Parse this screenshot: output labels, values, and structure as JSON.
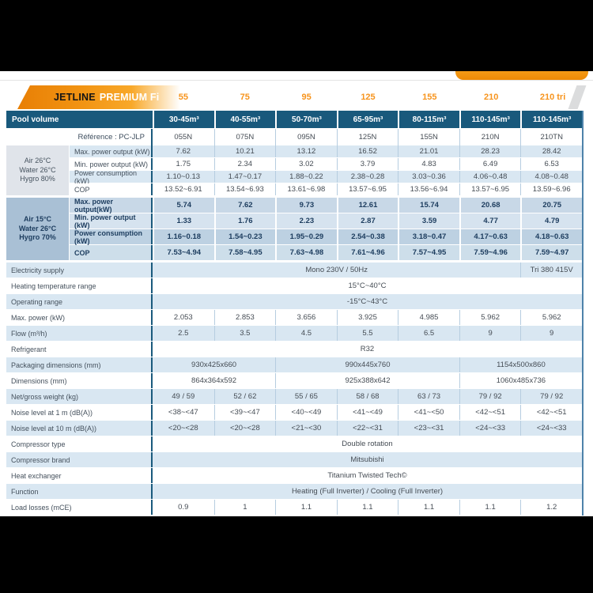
{
  "colors": {
    "accent_orange": "#f7941d",
    "header_blue": "#19597c",
    "row_light_blue": "#d9e7f2",
    "highlight_section_blue": "#a9c0d5"
  },
  "header_band": {
    "brand_black": "JETLINE",
    "brand_white": "PREMIUM Fi",
    "models": [
      "55",
      "75",
      "95",
      "125",
      "155",
      "210",
      "210 tri"
    ]
  },
  "table": {
    "pool_volume_row": {
      "label": "Pool volume",
      "values": [
        "30-45m³",
        "40-55m³",
        "50-70m³",
        "65-95m³",
        "80-115m³",
        "110-145m³",
        "110-145m³"
      ]
    },
    "reference_row": {
      "label": "Référence : PC-JLP",
      "values": [
        "055N",
        "075N",
        "095N",
        "125N",
        "155N",
        "210N",
        "210TN"
      ]
    },
    "condition_blocks": [
      {
        "style": "normal",
        "condition_lines": [
          "Air 26°C",
          "Water 26°C",
          "Hygro 80%"
        ],
        "rows": [
          {
            "label": "Max. power output (kW)",
            "values": [
              "7.62",
              "10.21",
              "13.12",
              "16.52",
              "21.01",
              "28.23",
              "28.42"
            ]
          },
          {
            "label": "Min. power output (kW)",
            "values": [
              "1.75",
              "2.34",
              "3.02",
              "3.79",
              "4.83",
              "6.49",
              "6.53"
            ]
          },
          {
            "label": "Power consumption (kW)",
            "values": [
              "1.10~0.13",
              "1.47~0.17",
              "1.88~0.22",
              "2.38~0.28",
              "3.03~0.36",
              "4.06~0.48",
              "4.08~0.48"
            ]
          },
          {
            "label": "COP",
            "values": [
              "13.52~6.91",
              "13.54~6.93",
              "13.61~6.98",
              "13.57~6.95",
              "13.56~6.94",
              "13.57~6.95",
              "13.59~6.96"
            ]
          }
        ]
      },
      {
        "style": "highlight",
        "condition_lines": [
          "Air 15°C",
          "Water 26°C",
          "Hygro 70%"
        ],
        "rows": [
          {
            "label": "Max. power output(kW)",
            "values": [
              "5.74",
              "7.62",
              "9.73",
              "12.61",
              "15.74",
              "20.68",
              "20.75"
            ]
          },
          {
            "label": "Min. power output (kW)",
            "values": [
              "1.33",
              "1.76",
              "2.23",
              "2.87",
              "3.59",
              "4.77",
              "4.79"
            ]
          },
          {
            "label": "Power consumption (kW)",
            "values": [
              "1.16~0.18",
              "1.54~0.23",
              "1.95~0.29",
              "2.54~0.38",
              "3.18~0.47",
              "4.17~0.63",
              "4.18~0.63"
            ]
          },
          {
            "label": "COP",
            "values": [
              "7.53~4.94",
              "7.58~4.95",
              "7.63~4.98",
              "7.61~4.96",
              "7.57~4.95",
              "7.59~4.96",
              "7.59~4.97"
            ]
          }
        ]
      }
    ],
    "spec_rows": [
      {
        "label": "Electricity supply",
        "cells": [
          {
            "text": "Mono 230V / 50Hz",
            "span": 6
          },
          {
            "text": "Tri 380 415V",
            "span": 1
          }
        ]
      },
      {
        "label": "Heating temperature range",
        "cells": [
          {
            "text": "15°C~40°C",
            "span": 7
          }
        ]
      },
      {
        "label": "Operating range",
        "cells": [
          {
            "text": "-15°C~43°C",
            "span": 7
          }
        ]
      },
      {
        "label": "Max. power (kW)",
        "cells": [
          {
            "text": "2.053"
          },
          {
            "text": "2.853"
          },
          {
            "text": "3.656"
          },
          {
            "text": "3.925"
          },
          {
            "text": "4.985"
          },
          {
            "text": "5.962"
          },
          {
            "text": "5.962"
          }
        ]
      },
      {
        "label": "Flow (m³/h)",
        "cells": [
          {
            "text": "2.5"
          },
          {
            "text": "3.5"
          },
          {
            "text": "4.5"
          },
          {
            "text": "5.5"
          },
          {
            "text": "6.5"
          },
          {
            "text": "9"
          },
          {
            "text": "9"
          }
        ]
      },
      {
        "label": "Refrigerant",
        "cells": [
          {
            "text": "R32",
            "span": 7
          }
        ]
      },
      {
        "label": "Packaging dimensions (mm)",
        "cells": [
          {
            "text": "930x425x660",
            "span": 2
          },
          {
            "text": "990x445x760",
            "span": 3
          },
          {
            "text": "1154x500x860",
            "span": 2
          }
        ]
      },
      {
        "label": "Dimensions (mm)",
        "cells": [
          {
            "text": "864x364x592",
            "span": 2
          },
          {
            "text": "925x388x642",
            "span": 3
          },
          {
            "text": "1060x485x736",
            "span": 2
          }
        ]
      },
      {
        "label": "Net/gross weight (kg)",
        "cells": [
          {
            "text": "49 / 59"
          },
          {
            "text": "52 / 62"
          },
          {
            "text": "55 / 65"
          },
          {
            "text": "58 / 68"
          },
          {
            "text": "63 / 73"
          },
          {
            "text": "79 / 92"
          },
          {
            "text": "79 / 92"
          }
        ]
      },
      {
        "label": "Noise level at 1 m (dB(A))",
        "cells": [
          {
            "text": "<38~<47"
          },
          {
            "text": "<39~<47"
          },
          {
            "text": "<40~<49"
          },
          {
            "text": "<41~<49"
          },
          {
            "text": "<41~<50"
          },
          {
            "text": "<42~<51"
          },
          {
            "text": "<42~<51"
          }
        ]
      },
      {
        "label": "Noise level at 10 m (dB(A))",
        "cells": [
          {
            "text": "<20~<28"
          },
          {
            "text": "<20~<28"
          },
          {
            "text": "<21~<30"
          },
          {
            "text": "<22~<31"
          },
          {
            "text": "<23~<31"
          },
          {
            "text": "<24~<33"
          },
          {
            "text": "<24~<33"
          }
        ]
      },
      {
        "label": "Compressor type",
        "cells": [
          {
            "text": "Double rotation",
            "span": 7
          }
        ]
      },
      {
        "label": "Compressor brand",
        "cells": [
          {
            "text": "Mitsubishi",
            "span": 7
          }
        ]
      },
      {
        "label": "Heat exchanger",
        "cells": [
          {
            "text": "Titanium Twisted Tech©",
            "span": 7
          }
        ]
      },
      {
        "label": "Function",
        "cells": [
          {
            "text": "Heating (Full Inverter) / Cooling (Full Inverter)",
            "span": 7
          }
        ]
      },
      {
        "label": "Load losses (mCE)",
        "cells": [
          {
            "text": "0.9"
          },
          {
            "text": "1"
          },
          {
            "text": "1.1"
          },
          {
            "text": "1.1"
          },
          {
            "text": "1.1"
          },
          {
            "text": "1.1"
          },
          {
            "text": "1.2"
          }
        ]
      }
    ]
  }
}
